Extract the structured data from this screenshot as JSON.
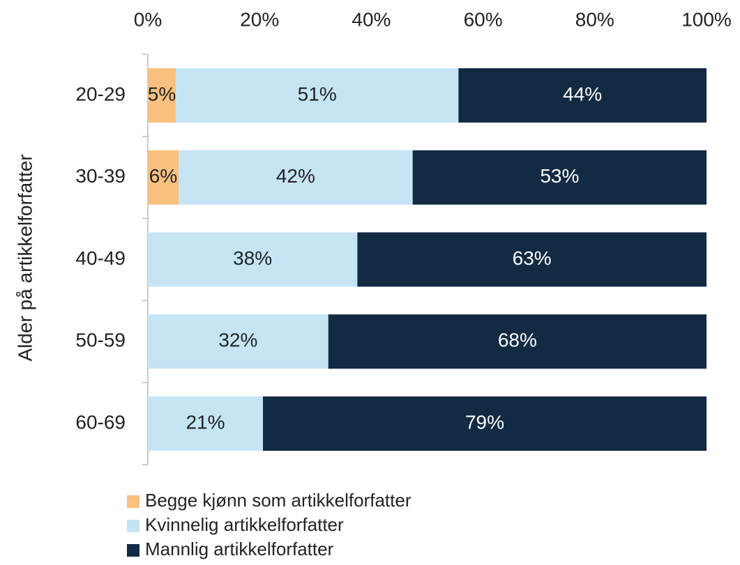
{
  "chart_data": {
    "type": "stacked-bar-horizontal",
    "y_axis_label": "Alder på artikkelforfatter",
    "categories": [
      "20-29",
      "30-39",
      "40-49",
      "50-59",
      "60-69"
    ],
    "series": [
      {
        "name": "Begge kjønn som artikkelforfatter",
        "color": "#f9c07f",
        "values": [
          5.0,
          5.5,
          null,
          null,
          null
        ],
        "value_labels": [
          "5%",
          "6%",
          null,
          null,
          null
        ]
      },
      {
        "name": "Kvinnelig artikkelforfatter",
        "color": "#c5e5f5",
        "values": [
          50.6,
          41.9,
          37.5,
          32.3,
          20.6
        ],
        "value_labels": [
          "51%",
          "42%",
          "38%",
          "32%",
          "21%"
        ]
      },
      {
        "name": "Mannlig artikkelforfatter",
        "color": "#132a43",
        "values": [
          44.4,
          52.6,
          62.5,
          67.7,
          79.4
        ],
        "value_labels": [
          "44%",
          "53%",
          "63%",
          "68%",
          "79%"
        ]
      }
    ],
    "xlim": [
      0,
      100
    ],
    "xticks": [
      {
        "value": 0,
        "label": "0%"
      },
      {
        "value": 20,
        "label": "20%"
      },
      {
        "value": 40,
        "label": "40%"
      },
      {
        "value": 60,
        "label": "60%"
      },
      {
        "value": 80,
        "label": "80%"
      },
      {
        "value": 100,
        "label": "100%"
      }
    ],
    "legend": "bottom"
  }
}
